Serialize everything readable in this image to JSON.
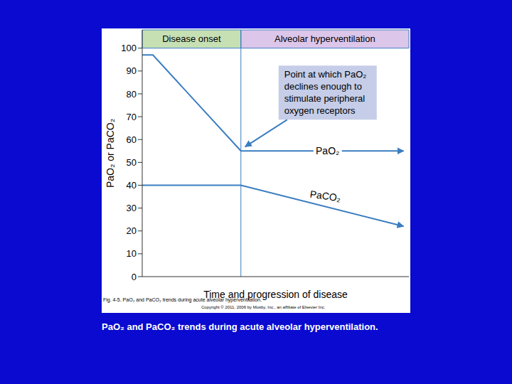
{
  "chart_data": {
    "type": "line",
    "y_label": "PaO₂ or PaCO₂",
    "x_label": "Time and progression of disease",
    "x": [
      0,
      0.4,
      3.7,
      9.8
    ],
    "xlim": [
      0,
      10
    ],
    "ylim": [
      0,
      108
    ],
    "yticks": [
      0,
      10,
      20,
      30,
      40,
      50,
      60,
      70,
      80,
      90,
      100
    ],
    "tick_labels": "y",
    "grid": false,
    "marker": "arrow",
    "series": [
      {
        "name": "PaO₂",
        "color": "#3a7dc0",
        "values": [
          97,
          97,
          55,
          55
        ]
      },
      {
        "name": "PaCO₂",
        "color": "#3a7dc0",
        "values": [
          40,
          40,
          40,
          22
        ]
      }
    ],
    "phases": [
      {
        "label": "Disease onset",
        "start": 0,
        "end": 3.7,
        "color": "#c6e0b4"
      },
      {
        "label": "Alveolar hyperventilation",
        "start": 3.7,
        "end": 10,
        "color": "#dcc6ea"
      }
    ],
    "annotation": {
      "lines": [
        "Point at which PaO₂",
        "declines enough to",
        "stimulate peripheral",
        "oxygen receptors"
      ],
      "x": 3.7,
      "y": 55,
      "color": "#c5cde8"
    },
    "figure_caption": "Fig. 4-5. PaO₂ and PaCO₂ trends during acute alveolar hyperventilation.",
    "copyright": "Copyright © 2011, 2006 by Mosby, Inc., an affiliate of Elsevier Inc.",
    "caption": "PaO₂ and PaCO₂ trends during acute alveolar hyperventilation."
  }
}
